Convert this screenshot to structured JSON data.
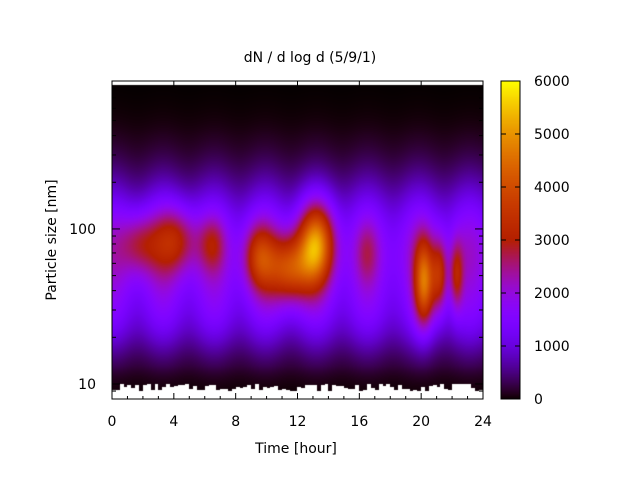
{
  "chart_data": {
    "type": "heatmap",
    "title": "dN / d log d (5/9/1)",
    "xlabel": "Time [hour]",
    "ylabel": "Particle size [nm]",
    "xlim": [
      0,
      24
    ],
    "x_ticks": [
      0,
      4,
      8,
      12,
      16,
      20,
      24
    ],
    "x_tick_labels": [
      "0",
      "4",
      "8",
      "12",
      "16",
      "20",
      "24"
    ],
    "y_scale": "log",
    "ylim": [
      8,
      900
    ],
    "y_ticks": [
      10,
      100
    ],
    "y_tick_labels": [
      "10",
      "100"
    ],
    "colorbar": {
      "range": [
        0,
        6000
      ],
      "ticks": [
        0,
        1000,
        2000,
        3000,
        4000,
        5000,
        6000
      ],
      "tick_labels": [
        "0",
        "1000",
        "2000",
        "3000",
        "4000",
        "5000",
        "6000"
      ],
      "palette": "gnuplot (black-purple-red-orange-yellow)"
    },
    "data_size_range_nm": [
      9,
      850
    ],
    "grid": false,
    "blobs": [
      {
        "t": 1.8,
        "d": 80,
        "peak": 3300,
        "t_width": 0.9,
        "logd_width": 0.14
      },
      {
        "t": 4.2,
        "d": 85,
        "peak": 3500,
        "t_width": 1.0,
        "logd_width": 0.15
      },
      {
        "t": 6.5,
        "d": 80,
        "peak": 2900,
        "t_width": 0.6,
        "logd_width": 0.12
      },
      {
        "t": 9.5,
        "d": 65,
        "peak": 3700,
        "t_width": 0.7,
        "logd_width": 0.15
      },
      {
        "t": 11.5,
        "d": 55,
        "peak": 4500,
        "t_width": 1.0,
        "logd_width": 0.15
      },
      {
        "t": 13.2,
        "d": 80,
        "peak": 5000,
        "t_width": 0.8,
        "logd_width": 0.18
      },
      {
        "t": 16.5,
        "d": 70,
        "peak": 2600,
        "t_width": 0.5,
        "logd_width": 0.14
      },
      {
        "t": 20.2,
        "d": 45,
        "peak": 4800,
        "t_width": 0.45,
        "logd_width": 0.19
      },
      {
        "t": 21.2,
        "d": 50,
        "peak": 3800,
        "t_width": 0.35,
        "logd_width": 0.16
      },
      {
        "t": 22.3,
        "d": 50,
        "peak": 3500,
        "t_width": 0.3,
        "logd_width": 0.15
      }
    ]
  }
}
